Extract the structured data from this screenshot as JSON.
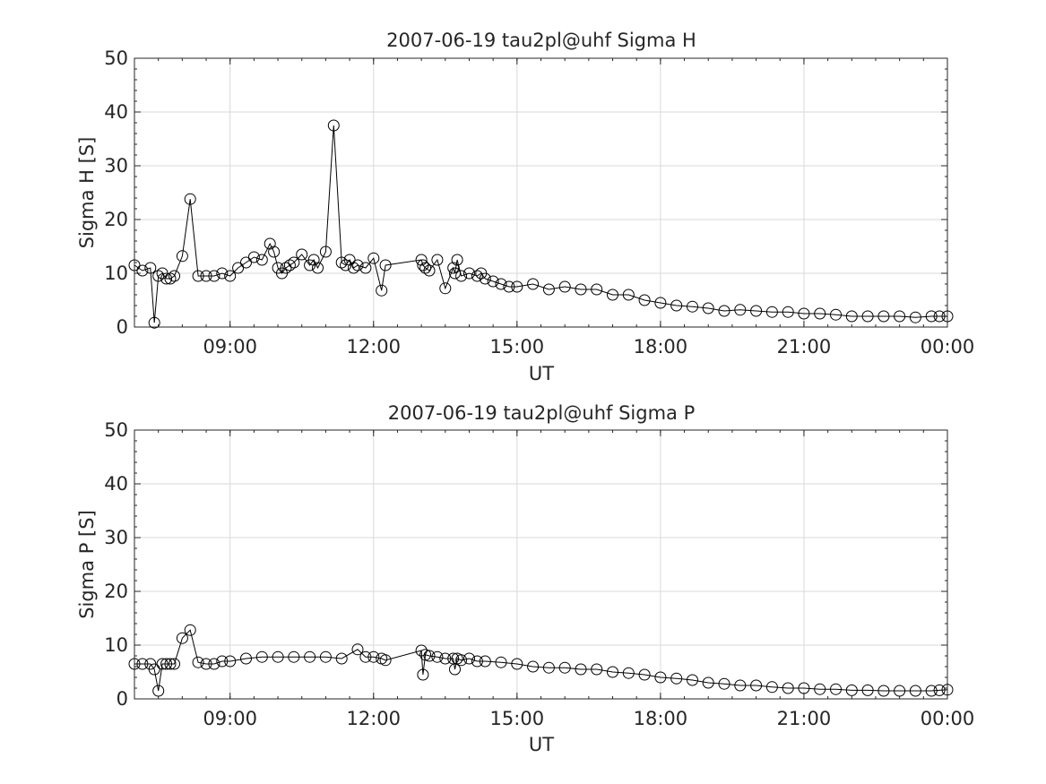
{
  "chart_data": [
    {
      "type": "line",
      "title": "2007-06-19  tau2pl@uhf Sigma H",
      "xlabel": "UT",
      "ylabel": "Sigma H [S]",
      "xlim": [
        "07:00",
        "00:00"
      ],
      "ylim": [
        0,
        50
      ],
      "xticks": [
        "09:00",
        "12:00",
        "15:00",
        "18:00",
        "21:00",
        "00:00"
      ],
      "yticks": [
        "0",
        "10",
        "20",
        "30",
        "40",
        "50"
      ],
      "grid": true,
      "marker": "open-circle",
      "series": [
        {
          "x": [
            "07:00",
            "07:10",
            "07:20",
            "07:25",
            "07:30",
            "07:35",
            "07:40",
            "07:45",
            "07:50",
            "08:00",
            "08:10",
            "08:20",
            "08:30",
            "08:40",
            "08:50",
            "09:00",
            "09:10",
            "09:20",
            "09:30",
            "09:40",
            "09:50",
            "09:55",
            "10:00",
            "10:05",
            "10:10",
            "10:15",
            "10:20",
            "10:30",
            "10:40",
            "10:45",
            "10:50",
            "11:00",
            "11:10",
            "11:20",
            "11:25",
            "11:30",
            "11:35",
            "11:40",
            "11:50",
            "12:00",
            "12:10",
            "12:15",
            "13:00",
            "13:02",
            "13:05",
            "13:10",
            "13:20",
            "13:30",
            "13:40",
            "13:42",
            "13:45",
            "13:50",
            "14:00",
            "14:10",
            "14:15",
            "14:20",
            "14:30",
            "14:40",
            "14:50",
            "15:00",
            "15:20",
            "15:40",
            "16:00",
            "16:20",
            "16:40",
            "17:00",
            "17:20",
            "17:40",
            "18:00",
            "18:20",
            "18:40",
            "19:00",
            "19:20",
            "19:40",
            "20:00",
            "20:20",
            "20:40",
            "21:00",
            "21:20",
            "21:40",
            "22:00",
            "22:20",
            "22:40",
            "23:00",
            "23:20",
            "23:40",
            "23:50",
            "00:00"
          ],
          "y": [
            11.5,
            10.5,
            11,
            0.8,
            9.5,
            10,
            9,
            9,
            9.5,
            13.2,
            23.8,
            9.5,
            9.5,
            9.5,
            10,
            9.5,
            11,
            12,
            13,
            12.5,
            15.5,
            14,
            11,
            10,
            11,
            11.5,
            12,
            13.5,
            11.5,
            12.5,
            11,
            14,
            37.5,
            12,
            11.5,
            12.5,
            11,
            11.5,
            11,
            12.8,
            6.8,
            11.5,
            12.5,
            11.5,
            11,
            10.5,
            12.5,
            7.2,
            11,
            10,
            12.5,
            9.5,
            10,
            9.5,
            10,
            9,
            8.5,
            8,
            7.5,
            7.5,
            8,
            7,
            7.5,
            7,
            7,
            6,
            6,
            5,
            4.5,
            4,
            3.8,
            3.5,
            3,
            3.2,
            3,
            2.8,
            2.8,
            2.5,
            2.5,
            2.3,
            2,
            2,
            2,
            2,
            1.8,
            2,
            2,
            2
          ]
        }
      ]
    },
    {
      "type": "line",
      "title": "2007-06-19  tau2pl@uhf Sigma P",
      "xlabel": "UT",
      "ylabel": "Sigma P [S]",
      "xlim": [
        "07:00",
        "00:00"
      ],
      "ylim": [
        0,
        50
      ],
      "xticks": [
        "09:00",
        "12:00",
        "15:00",
        "18:00",
        "21:00",
        "00:00"
      ],
      "yticks": [
        "0",
        "10",
        "20",
        "30",
        "40",
        "50"
      ],
      "grid": true,
      "marker": "open-circle",
      "series": [
        {
          "x": [
            "07:00",
            "07:10",
            "07:20",
            "07:25",
            "07:30",
            "07:35",
            "07:40",
            "07:45",
            "07:50",
            "08:00",
            "08:10",
            "08:20",
            "08:30",
            "08:40",
            "08:50",
            "09:00",
            "09:20",
            "09:40",
            "10:00",
            "10:20",
            "10:40",
            "11:00",
            "11:20",
            "11:40",
            "11:50",
            "12:00",
            "12:10",
            "12:15",
            "13:00",
            "13:02",
            "13:05",
            "13:10",
            "13:20",
            "13:30",
            "13:40",
            "13:42",
            "13:45",
            "13:50",
            "14:00",
            "14:10",
            "14:20",
            "14:40",
            "15:00",
            "15:20",
            "15:40",
            "16:00",
            "16:20",
            "16:40",
            "17:00",
            "17:20",
            "17:40",
            "18:00",
            "18:20",
            "18:40",
            "19:00",
            "19:20",
            "19:40",
            "20:00",
            "20:20",
            "20:40",
            "21:00",
            "21:20",
            "21:40",
            "22:00",
            "22:20",
            "22:40",
            "23:00",
            "23:20",
            "23:40",
            "23:50",
            "00:00"
          ],
          "y": [
            6.5,
            6.5,
            6.5,
            5.5,
            1.5,
            6.5,
            6.5,
            6.5,
            6.5,
            11.3,
            12.8,
            6.8,
            6.5,
            6.5,
            7,
            7,
            7.5,
            7.8,
            7.8,
            7.8,
            7.8,
            7.8,
            7.5,
            9.2,
            7.8,
            7.8,
            7.5,
            7.2,
            9,
            4.5,
            8.2,
            8,
            7.8,
            7.5,
            7.5,
            5.5,
            7.5,
            7.2,
            7.5,
            7,
            7,
            6.8,
            6.5,
            6,
            5.8,
            5.8,
            5.5,
            5.5,
            5,
            4.8,
            4.5,
            4,
            3.8,
            3.5,
            3,
            2.8,
            2.5,
            2.5,
            2.2,
            2,
            2,
            1.8,
            1.8,
            1.6,
            1.6,
            1.5,
            1.5,
            1.5,
            1.5,
            1.6,
            1.7
          ]
        }
      ]
    }
  ]
}
